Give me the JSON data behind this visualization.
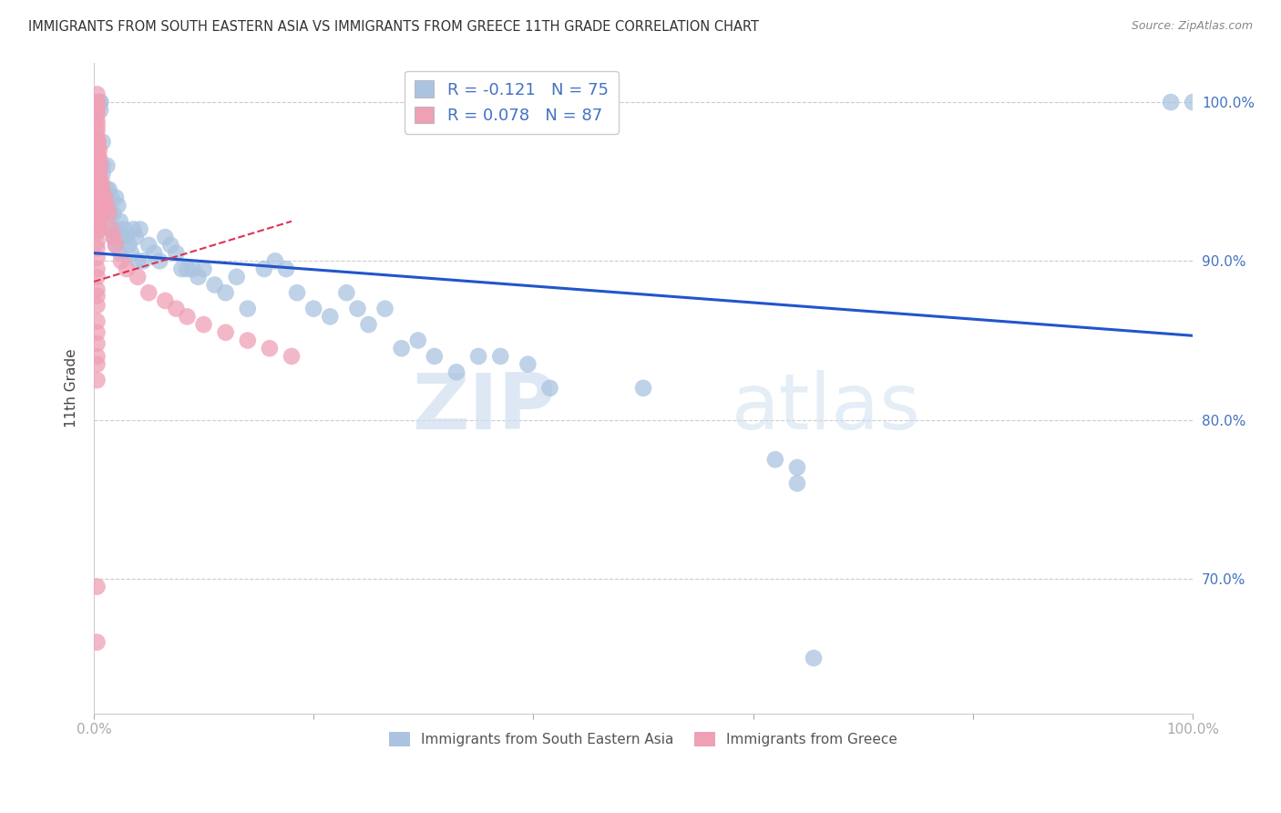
{
  "title": "IMMIGRANTS FROM SOUTH EASTERN ASIA VS IMMIGRANTS FROM GREECE 11TH GRADE CORRELATION CHART",
  "source": "Source: ZipAtlas.com",
  "ylabel": "11th Grade",
  "xlim": [
    0.0,
    1.0
  ],
  "ylim": [
    0.615,
    1.025
  ],
  "yticks": [
    0.7,
    0.8,
    0.9,
    1.0
  ],
  "ytick_labels": [
    "70.0%",
    "80.0%",
    "90.0%",
    "100.0%"
  ],
  "axis_label_color": "#4472C4",
  "watermark_zip": "ZIP",
  "watermark_atlas": "atlas",
  "blue_R": -0.121,
  "blue_N": 75,
  "pink_R": 0.078,
  "pink_N": 87,
  "blue_color": "#aac4e0",
  "pink_color": "#f0a0b5",
  "blue_line_color": "#2255cc",
  "pink_line_color": "#dd3355",
  "blue_line_x0": 0.0,
  "blue_line_y0": 0.905,
  "blue_line_x1": 1.0,
  "blue_line_y1": 0.853,
  "pink_line_x0": 0.0,
  "pink_line_y0": 0.887,
  "pink_line_x1": 0.18,
  "pink_line_y1": 0.925,
  "grid_color": "#cccccc",
  "background_color": "#ffffff",
  "blue_x": [
    0.008,
    0.008,
    0.008,
    0.01,
    0.01,
    0.012,
    0.012,
    0.014,
    0.014,
    0.016,
    0.016,
    0.018,
    0.018,
    0.02,
    0.02,
    0.022,
    0.022,
    0.024,
    0.024,
    0.026,
    0.028,
    0.03,
    0.032,
    0.034,
    0.036,
    0.038,
    0.04,
    0.042,
    0.045,
    0.05,
    0.055,
    0.06,
    0.065,
    0.07,
    0.075,
    0.08,
    0.085,
    0.09,
    0.095,
    0.1,
    0.11,
    0.12,
    0.13,
    0.14,
    0.155,
    0.165,
    0.175,
    0.185,
    0.2,
    0.215,
    0.23,
    0.24,
    0.25,
    0.265,
    0.28,
    0.295,
    0.31,
    0.33,
    0.35,
    0.37,
    0.395,
    0.415,
    0.5,
    0.62,
    0.64,
    0.64,
    0.655,
    0.98,
    1.0,
    0.006,
    0.006,
    0.006,
    0.006,
    0.006,
    0.006
  ],
  "blue_y": [
    0.975,
    0.96,
    0.955,
    0.94,
    0.935,
    0.96,
    0.945,
    0.945,
    0.93,
    0.94,
    0.92,
    0.93,
    0.915,
    0.94,
    0.91,
    0.935,
    0.92,
    0.925,
    0.905,
    0.915,
    0.92,
    0.915,
    0.91,
    0.905,
    0.92,
    0.915,
    0.9,
    0.92,
    0.9,
    0.91,
    0.905,
    0.9,
    0.915,
    0.91,
    0.905,
    0.895,
    0.895,
    0.895,
    0.89,
    0.895,
    0.885,
    0.88,
    0.89,
    0.87,
    0.895,
    0.9,
    0.895,
    0.88,
    0.87,
    0.865,
    0.88,
    0.87,
    0.86,
    0.87,
    0.845,
    0.85,
    0.84,
    0.83,
    0.84,
    0.84,
    0.835,
    0.82,
    0.82,
    0.775,
    0.77,
    0.76,
    0.65,
    1.0,
    1.0,
    1.0,
    1.0,
    0.995,
    0.94,
    0.94,
    0.93
  ],
  "pink_x": [
    0.003,
    0.003,
    0.003,
    0.003,
    0.003,
    0.003,
    0.003,
    0.003,
    0.003,
    0.003,
    0.003,
    0.003,
    0.003,
    0.003,
    0.003,
    0.003,
    0.003,
    0.003,
    0.003,
    0.003,
    0.003,
    0.003,
    0.003,
    0.003,
    0.003,
    0.003,
    0.004,
    0.004,
    0.004,
    0.004,
    0.004,
    0.004,
    0.004,
    0.004,
    0.004,
    0.005,
    0.005,
    0.005,
    0.005,
    0.005,
    0.005,
    0.005,
    0.005,
    0.006,
    0.006,
    0.006,
    0.007,
    0.007,
    0.007,
    0.008,
    0.008,
    0.009,
    0.01,
    0.012,
    0.014,
    0.016,
    0.018,
    0.02,
    0.025,
    0.03,
    0.04,
    0.05,
    0.065,
    0.075,
    0.085,
    0.1,
    0.12,
    0.14,
    0.16,
    0.18,
    0.003,
    0.003,
    0.003,
    0.003,
    0.003,
    0.003,
    0.003,
    0.003,
    0.003,
    0.003,
    0.003,
    0.003,
    0.003,
    0.003,
    0.003,
    0.003,
    0.003
  ],
  "pink_y": [
    1.005,
    1.0,
    0.998,
    0.995,
    0.992,
    0.988,
    0.985,
    0.982,
    0.978,
    0.975,
    0.972,
    0.968,
    0.965,
    0.962,
    0.958,
    0.955,
    0.952,
    0.948,
    0.945,
    0.942,
    0.938,
    0.935,
    0.932,
    0.928,
    0.925,
    0.922,
    0.975,
    0.965,
    0.96,
    0.955,
    0.945,
    0.94,
    0.935,
    0.93,
    0.925,
    0.97,
    0.965,
    0.955,
    0.95,
    0.94,
    0.935,
    0.925,
    0.92,
    0.96,
    0.945,
    0.935,
    0.95,
    0.94,
    0.93,
    0.945,
    0.93,
    0.935,
    0.94,
    0.935,
    0.93,
    0.92,
    0.915,
    0.91,
    0.9,
    0.895,
    0.89,
    0.88,
    0.875,
    0.87,
    0.865,
    0.86,
    0.855,
    0.85,
    0.845,
    0.84,
    0.918,
    0.912,
    0.908,
    0.902,
    0.895,
    0.89,
    0.882,
    0.878,
    0.872,
    0.862,
    0.855,
    0.848,
    0.84,
    0.835,
    0.825,
    0.695,
    0.66
  ]
}
